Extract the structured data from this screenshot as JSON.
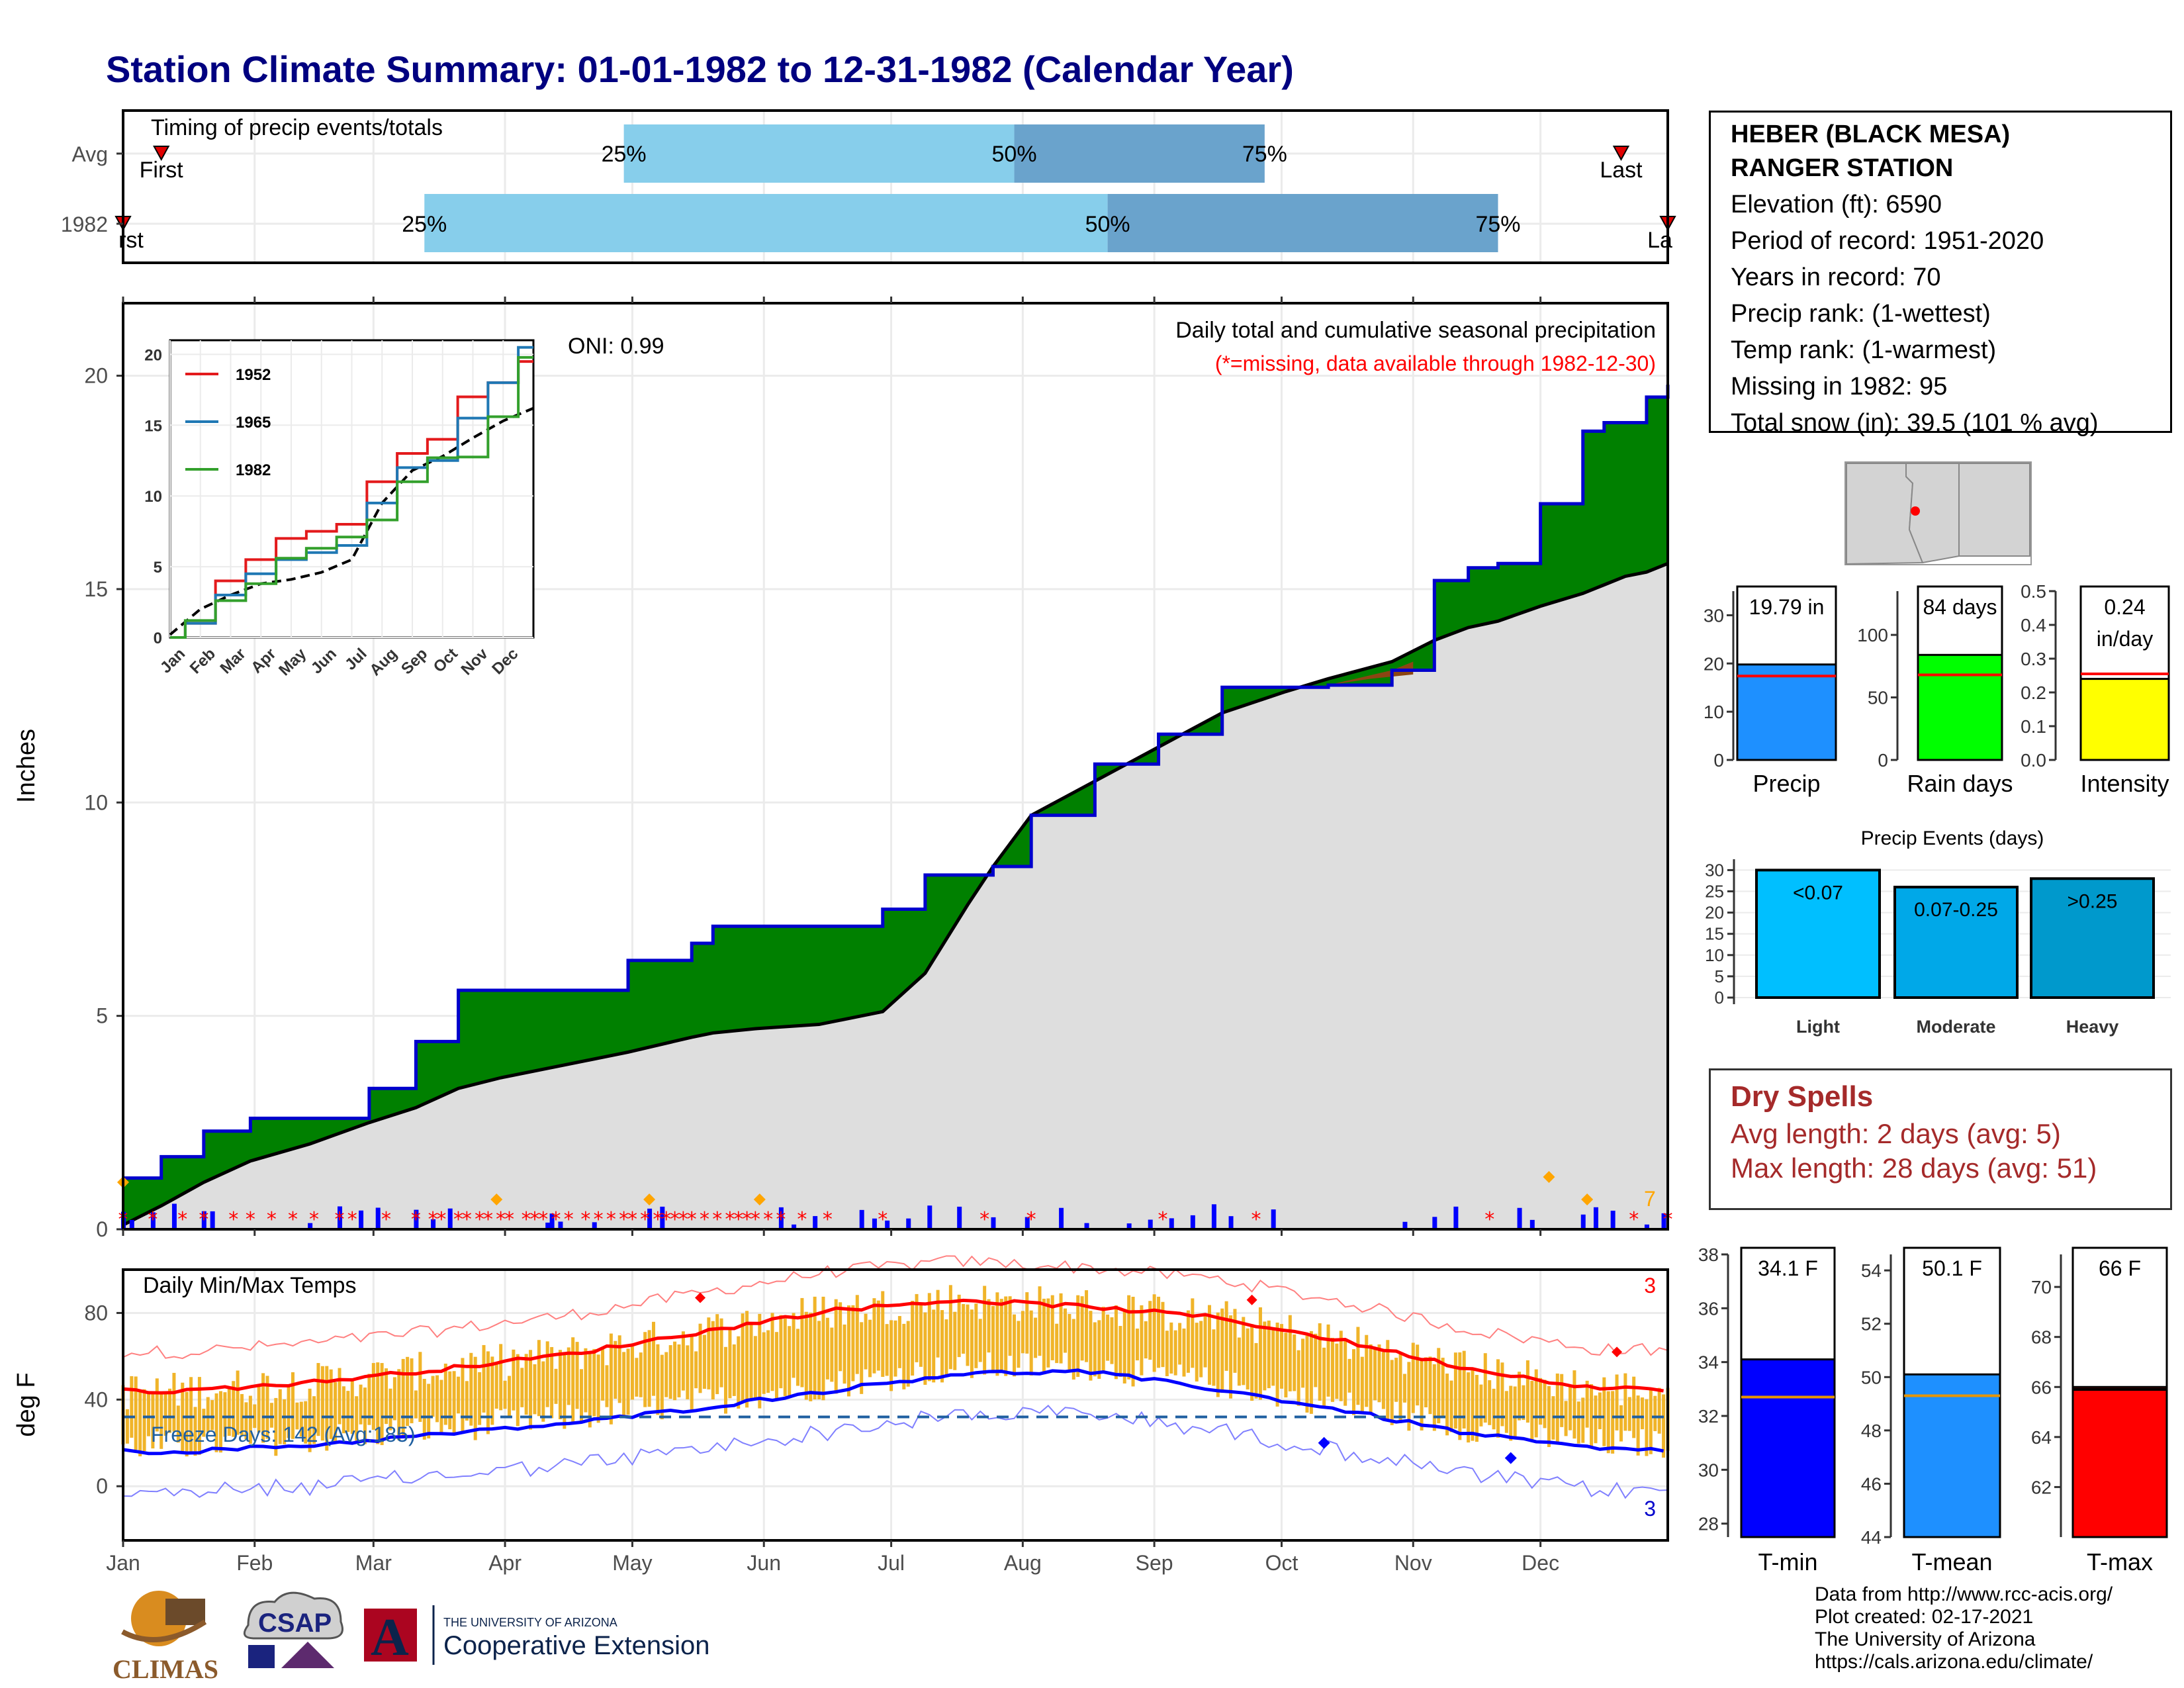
{
  "title": "Station Climate Summary: 01-01-1982 to 12-31-1982 (Calendar Year)",
  "station": {
    "name_line1": "HEBER (BLACK MESA)",
    "name_line2": "RANGER STATION",
    "elevation": "Elevation (ft): 6590",
    "period": "Period of record: 1951-2020",
    "years": "Years in record: 70",
    "precip_rank": "Precip rank:  (1-wettest)",
    "temp_rank": "Temp rank:  (1-warmest)",
    "missing": "Missing in 1982: 95",
    "snow": "Total snow (in): 39.5 (101 % avg)"
  },
  "timing": {
    "label": "Timing of precip events/totals",
    "row_avg": "Avg",
    "row_year": "1982",
    "first": "First",
    "last": "Last",
    "p25": "25%",
    "p50": "50%",
    "p75": "75%"
  },
  "months": [
    "Jan",
    "Feb",
    "Mar",
    "Apr",
    "May",
    "Jun",
    "Jul",
    "Aug",
    "Sep",
    "Oct",
    "Nov",
    "Dec"
  ],
  "main_panel": {
    "ylabel": "Inches",
    "oni": "ONI: 0.99",
    "caption1": "Daily total and cumulative seasonal precipitation",
    "caption2": "(*=missing, data available through 1982-12-30)",
    "count_label": "7"
  },
  "inset": {
    "legend": [
      "1952",
      "1965",
      "1982"
    ],
    "colors": [
      "#e31a1c",
      "#1f78b4",
      "#33a02c"
    ]
  },
  "temp_panel": {
    "ylabel": "deg F",
    "title": "Daily Min/Max Temps",
    "freeze": "Freeze Days: 142 (Avg:185)",
    "max_count": "3",
    "min_count": "3"
  },
  "bars_precip": {
    "precip": {
      "value_label": "19.79 in",
      "xlabel": "Precip",
      "value": 19.79,
      "avg": 17.4,
      "ylim": [
        0,
        35
      ],
      "ticks": [
        "0",
        "10",
        "20",
        "30"
      ],
      "color": "#1e90ff"
    },
    "rain": {
      "value_label": "84 days",
      "xlabel": "Rain days",
      "value": 84,
      "avg": 68,
      "ylim": [
        0,
        135
      ],
      "ticks": [
        "0",
        "50",
        "100"
      ],
      "color": "#00ff00"
    },
    "intensity": {
      "value_label1": "0.24",
      "value_label2": "in/day",
      "xlabel": "Intensity",
      "value": 0.24,
      "avg": 0.255,
      "ylim": [
        0,
        0.5
      ],
      "ticks": [
        "0.0",
        "0.1",
        "0.2",
        "0.3",
        "0.4",
        "0.5"
      ],
      "color": "#ffff00"
    }
  },
  "events": {
    "title": "Precip Events (days)",
    "categories": [
      "Light",
      "Moderate",
      "Heavy"
    ],
    "bar_labels": [
      "<0.07",
      "0.07-0.25",
      ">0.25"
    ],
    "values": [
      30,
      26,
      28
    ],
    "ticks": [
      "0",
      "5",
      "10",
      "15",
      "20",
      "25",
      "30"
    ],
    "colors": [
      "#00bfff",
      "#00a8e8",
      "#0099cc"
    ]
  },
  "dry": {
    "title": "Dry Spells",
    "avg": "Avg length: 2 days (avg: 5)",
    "max": "Max length: 28 days (avg: 51)"
  },
  "temps_bars": {
    "tmin": {
      "value_label": "34.1 F",
      "xlabel": "T-min",
      "value": 34.1,
      "avg": 32.7,
      "ylim": [
        27.5,
        38
      ],
      "ticks": [
        "28",
        "30",
        "32",
        "34",
        "36",
        "38"
      ],
      "color": "#0000ff"
    },
    "tmean": {
      "value_label": "50.1 F",
      "xlabel": "T-mean",
      "value": 50.1,
      "avg": 49.3,
      "ylim": [
        44,
        54.6
      ],
      "ticks": [
        "44",
        "46",
        "48",
        "50",
        "52",
        "54"
      ],
      "color": "#1e90ff"
    },
    "tmax": {
      "value_label": "66 F",
      "xlabel": "T-max",
      "value": 66,
      "avg": 65.9,
      "ylim": [
        60,
        71.3
      ],
      "ticks": [
        "62",
        "64",
        "66",
        "68",
        "70"
      ],
      "color": "#ff0000"
    }
  },
  "footer": {
    "l1": "Data from http://www.rcc-acis.org/",
    "l2": "Plot created: 02-17-2021",
    "l3": "The University of Arizona",
    "l4": "https://cals.arizona.edu/climate/"
  },
  "logos": {
    "climas": "CLIMAS",
    "csap": "CSAP",
    "ua_small": "THE UNIVERSITY OF ARIZONA",
    "ua_ext": "Cooperative Extension"
  },
  "chart_data": [
    {
      "type": "bar",
      "title": "Timing of precip events/totals",
      "categories": [
        "Avg",
        "1982"
      ],
      "series": [
        {
          "name": "25%",
          "values": [
            "Apr 29",
            "Mar 13"
          ]
        },
        {
          "name": "50%",
          "values": [
            "Jul 30",
            "Aug 21"
          ]
        },
        {
          "name": "75%",
          "values": [
            "Sep 27",
            "Nov 21"
          ]
        }
      ]
    },
    {
      "type": "area",
      "title": "Daily total and cumulative seasonal precipitation",
      "ylabel": "Inches",
      "ylim": [
        0,
        21.5
      ],
      "x_days": [
        1,
        10,
        20,
        31,
        45,
        59,
        70,
        80,
        90,
        105,
        120,
        135,
        140,
        150,
        165,
        180,
        190,
        200,
        206,
        215,
        230,
        245,
        260,
        275,
        285,
        300,
        310,
        318,
        325,
        335,
        345,
        350,
        355,
        360,
        365
      ],
      "series": [
        {
          "name": "1982 cumulative",
          "values": [
            1.2,
            1.7,
            2.3,
            2.6,
            2.6,
            3.3,
            4.4,
            5.6,
            5.6,
            5.6,
            6.3,
            6.7,
            7.1,
            7.1,
            7.1,
            7.5,
            8.3,
            8.3,
            8.5,
            9.7,
            10.9,
            11.6,
            12.7,
            12.7,
            12.75,
            13.1,
            15.2,
            15.5,
            15.6,
            17.0,
            18.7,
            18.9,
            18.9,
            19.5,
            19.79
          ]
        },
        {
          "name": "average cumulative",
          "values": [
            0.1,
            0.55,
            1.1,
            1.6,
            2.0,
            2.5,
            2.85,
            3.3,
            3.55,
            3.85,
            4.15,
            4.5,
            4.6,
            4.7,
            4.8,
            5.1,
            6.0,
            7.6,
            8.5,
            9.7,
            10.5,
            11.3,
            12.1,
            12.6,
            12.9,
            13.3,
            13.8,
            14.1,
            14.25,
            14.6,
            14.9,
            15.1,
            15.3,
            15.4,
            15.6
          ]
        }
      ]
    },
    {
      "type": "line",
      "title": "",
      "categories": [
        "Jan",
        "Feb",
        "Mar",
        "Apr",
        "May",
        "Jun",
        "Jul",
        "Aug",
        "Sep",
        "Oct",
        "Nov",
        "Dec"
      ],
      "series": [
        {
          "name": "1952",
          "values": [
            1.0,
            4.0,
            5.5,
            7.0,
            7.5,
            8.0,
            11.0,
            13.0,
            14.0,
            17.0,
            18.0,
            19.5
          ]
        },
        {
          "name": "1965",
          "values": [
            1.0,
            3.0,
            4.5,
            5.5,
            6.0,
            6.5,
            9.5,
            12.0,
            12.5,
            15.5,
            18.0,
            20.5
          ]
        },
        {
          "name": "1982",
          "values": [
            1.2,
            2.6,
            3.8,
            5.6,
            6.3,
            7.1,
            8.3,
            11.0,
            12.7,
            12.75,
            15.6,
            19.79
          ]
        }
      ],
      "ylim": [
        0,
        21
      ]
    },
    {
      "type": "line",
      "title": "Daily Min/Max Temps",
      "ylabel": "deg F",
      "categories": [
        "Jan",
        "Feb",
        "Mar",
        "Apr",
        "May",
        "Jun",
        "Jul",
        "Aug",
        "Sep",
        "Oct",
        "Nov",
        "Dec"
      ],
      "series": [
        {
          "name": "Avg max",
          "values": [
            44,
            48,
            54,
            61,
            71,
            81,
            86,
            83,
            78,
            67,
            54,
            45
          ]
        },
        {
          "name": "Avg min",
          "values": [
            16,
            19,
            24,
            29,
            36,
            44,
            52,
            53,
            45,
            35,
            24,
            17
          ]
        }
      ],
      "ylim": [
        -25,
        100
      ],
      "freeze_line": 32
    },
    {
      "type": "bar",
      "title": "Precip Events (days)",
      "categories": [
        "Light",
        "Moderate",
        "Heavy"
      ],
      "values": [
        30,
        26,
        28
      ]
    },
    {
      "type": "bar",
      "categories": [
        "Precip",
        "Rain days",
        "Intensity"
      ],
      "values": [
        19.79,
        84,
        0.24
      ]
    },
    {
      "type": "bar",
      "categories": [
        "T-min",
        "T-mean",
        "T-max"
      ],
      "values": [
        34.1,
        50.1,
        66
      ]
    }
  ]
}
